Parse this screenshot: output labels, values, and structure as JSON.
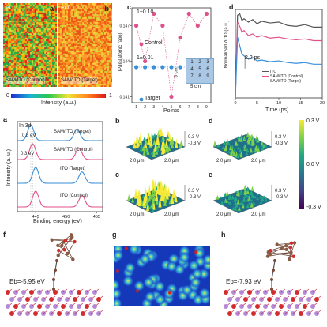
{
  "panels": {
    "a_top": {
      "label": "a",
      "corner": "PO",
      "sample": "SAM/ITO (Control)",
      "colors": [
        "#1aa64a",
        "#46bb3e",
        "#8fd13a",
        "#d6e23a",
        "#ffb000",
        "#ff5a1a",
        "#e01818"
      ]
    },
    "b_top": {
      "label": "b",
      "corner": "PO",
      "sample": "SAM/ITO (Target)",
      "colors": [
        "#e05a14",
        "#ff7f1a",
        "#ffa52a",
        "#ffcf3a",
        "#d1d93a",
        "#f0501a",
        "#ff9430"
      ]
    },
    "intensity": {
      "title": "Intensity (a.u.)",
      "min": "0",
      "max": "1",
      "gradient": [
        "#1d2ad6",
        "#18b4d2",
        "#2ac94a",
        "#f0e43a",
        "#ff8a1a",
        "#e01818"
      ]
    },
    "c": {
      "label": "c",
      "ylabel": "IP/In (atomic ratio)",
      "control_annot": "1±0.10",
      "target_annot": "1±0.01",
      "legend_control": "Control",
      "legend_target": "Target",
      "xlabel": "Points",
      "grid_numbers": [
        "1",
        "2",
        "3",
        "4",
        "5",
        "6",
        "7",
        "8",
        "9"
      ],
      "grid_unit_v": "5 cm",
      "grid_unit_h": "5 cm"
    },
    "d": {
      "label": "d",
      "ylabel": "Normalized ΔOD (a.u.)",
      "xlabel": "Time (ps)",
      "annot": "2.2 ps",
      "legend": [
        "ITO",
        "SAM/ITO (Control)",
        "SAM/ITO (Target)"
      ]
    },
    "a_xps": {
      "label": "a",
      "title": "In 3d",
      "shift1": "0.8 eV",
      "shift2": "0.3 eV",
      "ylabel": "Intensity (a. u.)",
      "xlabel": "Binding energy (eV)",
      "curve_labels": [
        "SAM/ITO (Target)",
        "SAM/ITO (Control)",
        "ITO (Target)",
        "ITO (Control)"
      ]
    },
    "kpfm": {
      "surfaces": [
        {
          "label": "b",
          "top": "0.3 V",
          "bottom": "-0.3 V",
          "x": "2.0 μm",
          "y": "2.0 μm"
        },
        {
          "label": "c",
          "top": "0.3 V",
          "bottom": "-0.3 V",
          "x": "2.0 μm",
          "y": "2.0 μm"
        },
        {
          "label": "d",
          "top": "0.3 V",
          "bottom": "-0.3 V",
          "x": "2.0 μm",
          "y": "2.0 μm"
        },
        {
          "label": "e",
          "top": "0.3 V",
          "bottom": "-0.3 V",
          "x": "2.0 μm",
          "y": "2.0 μm"
        }
      ],
      "colorbar": {
        "top": "0.3 V",
        "mid": "0.0 V",
        "bottom": "-0.3 V"
      }
    },
    "f": {
      "label": "f",
      "energy": "Eb=-5.95 eV"
    },
    "g": {
      "label": "g"
    },
    "h": {
      "label": "h",
      "energy": "Eb=-7.93 eV"
    }
  },
  "chart_data": [
    {
      "type": "scatter",
      "title": "",
      "xlabel": "Points",
      "ylabel": "IP/In (atomic ratio)",
      "x": [
        1,
        2,
        3,
        4,
        5,
        6,
        7,
        8,
        9
      ],
      "xlim": [
        0.5,
        9.5
      ],
      "series": [
        {
          "name": "Control",
          "color": "#e0508a",
          "values": [
            0.147,
            0.144,
            0.148,
            0.147,
            0.141,
            0.146,
            0.148,
            0.147,
            0.148
          ]
        },
        {
          "name": "Target",
          "color": "#3a8fd9",
          "values": [
            0.1435,
            0.1435,
            0.1435,
            0.1435,
            0.1435,
            0.1435,
            0.1435,
            0.1435,
            0.1435
          ]
        }
      ],
      "yticks": [
        "0.147",
        "0.144",
        "0.141"
      ]
    },
    {
      "type": "line",
      "title": "",
      "xlabel": "Time (ps)",
      "ylabel": "Normalized ΔOD (a.u.)",
      "xlim": [
        0,
        20
      ],
      "ylim": [
        0,
        1.05
      ],
      "xticks": [
        "0",
        "5",
        "10",
        "15",
        "20"
      ],
      "x": [
        0,
        0.5,
        1,
        1.5,
        2,
        3,
        4,
        5,
        6,
        8,
        10,
        12,
        14,
        16,
        18,
        20
      ],
      "series": [
        {
          "name": "ITO",
          "color": "#555555",
          "values": [
            0.0,
            0.98,
            1.0,
            0.92,
            0.94,
            0.9,
            0.93,
            0.88,
            0.91,
            0.89,
            0.9,
            0.86,
            0.85,
            0.87,
            0.84,
            0.84
          ]
        },
        {
          "name": "SAM/ITO (Control)",
          "color": "#e0508a",
          "values": [
            0.0,
            0.9,
            0.85,
            0.78,
            0.8,
            0.74,
            0.76,
            0.72,
            0.74,
            0.71,
            0.72,
            0.7,
            0.69,
            0.7,
            0.68,
            0.68
          ]
        },
        {
          "name": "SAM/ITO (Target)",
          "color": "#3a8fd9",
          "values": [
            0.0,
            0.72,
            0.62,
            0.52,
            0.5,
            0.46,
            0.48,
            0.44,
            0.45,
            0.43,
            0.44,
            0.42,
            0.41,
            0.42,
            0.4,
            0.4
          ]
        }
      ]
    },
    {
      "type": "line",
      "title": "In 3d",
      "xlabel": "Binding energy (eV)",
      "ylabel": "Intensity (a. u.)",
      "xlim": [
        442,
        456
      ],
      "xticks": [
        "445",
        "450",
        "455"
      ],
      "series": [
        {
          "name": "SAM/ITO (Target)",
          "color": "#3a8fd9",
          "peaks": [
            444.2,
            451.8
          ]
        },
        {
          "name": "SAM/ITO (Control)",
          "color": "#e0508a",
          "peaks": [
            444.5,
            452.1
          ]
        },
        {
          "name": "ITO (Target)",
          "color": "#3a8fd9",
          "peaks": [
            445.0,
            452.6
          ]
        },
        {
          "name": "ITO (Control)",
          "color": "#e0508a",
          "peaks": [
            445.0,
            452.6
          ]
        }
      ]
    }
  ]
}
